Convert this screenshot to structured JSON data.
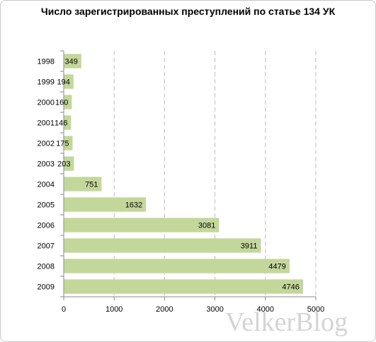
{
  "chart_data": {
    "type": "bar",
    "orientation": "horizontal",
    "title": "Число зарегистрированных преступлений по статье 134 УК",
    "categories": [
      "1998",
      "1999",
      "2000",
      "2001",
      "2002",
      "2003",
      "2004",
      "2005",
      "2006",
      "2007",
      "2008",
      "2009"
    ],
    "values": [
      349,
      194,
      160,
      146,
      175,
      203,
      751,
      1632,
      3081,
      3911,
      4479,
      4746
    ],
    "xlim": [
      0,
      5000
    ],
    "x_ticks": [
      0,
      1000,
      2000,
      3000,
      4000,
      5000
    ],
    "grid": "vertical dashed",
    "legend": "none",
    "bar_color": "#c4d79b",
    "xlabel": "",
    "ylabel": ""
  },
  "watermark": "VelkerBlog"
}
